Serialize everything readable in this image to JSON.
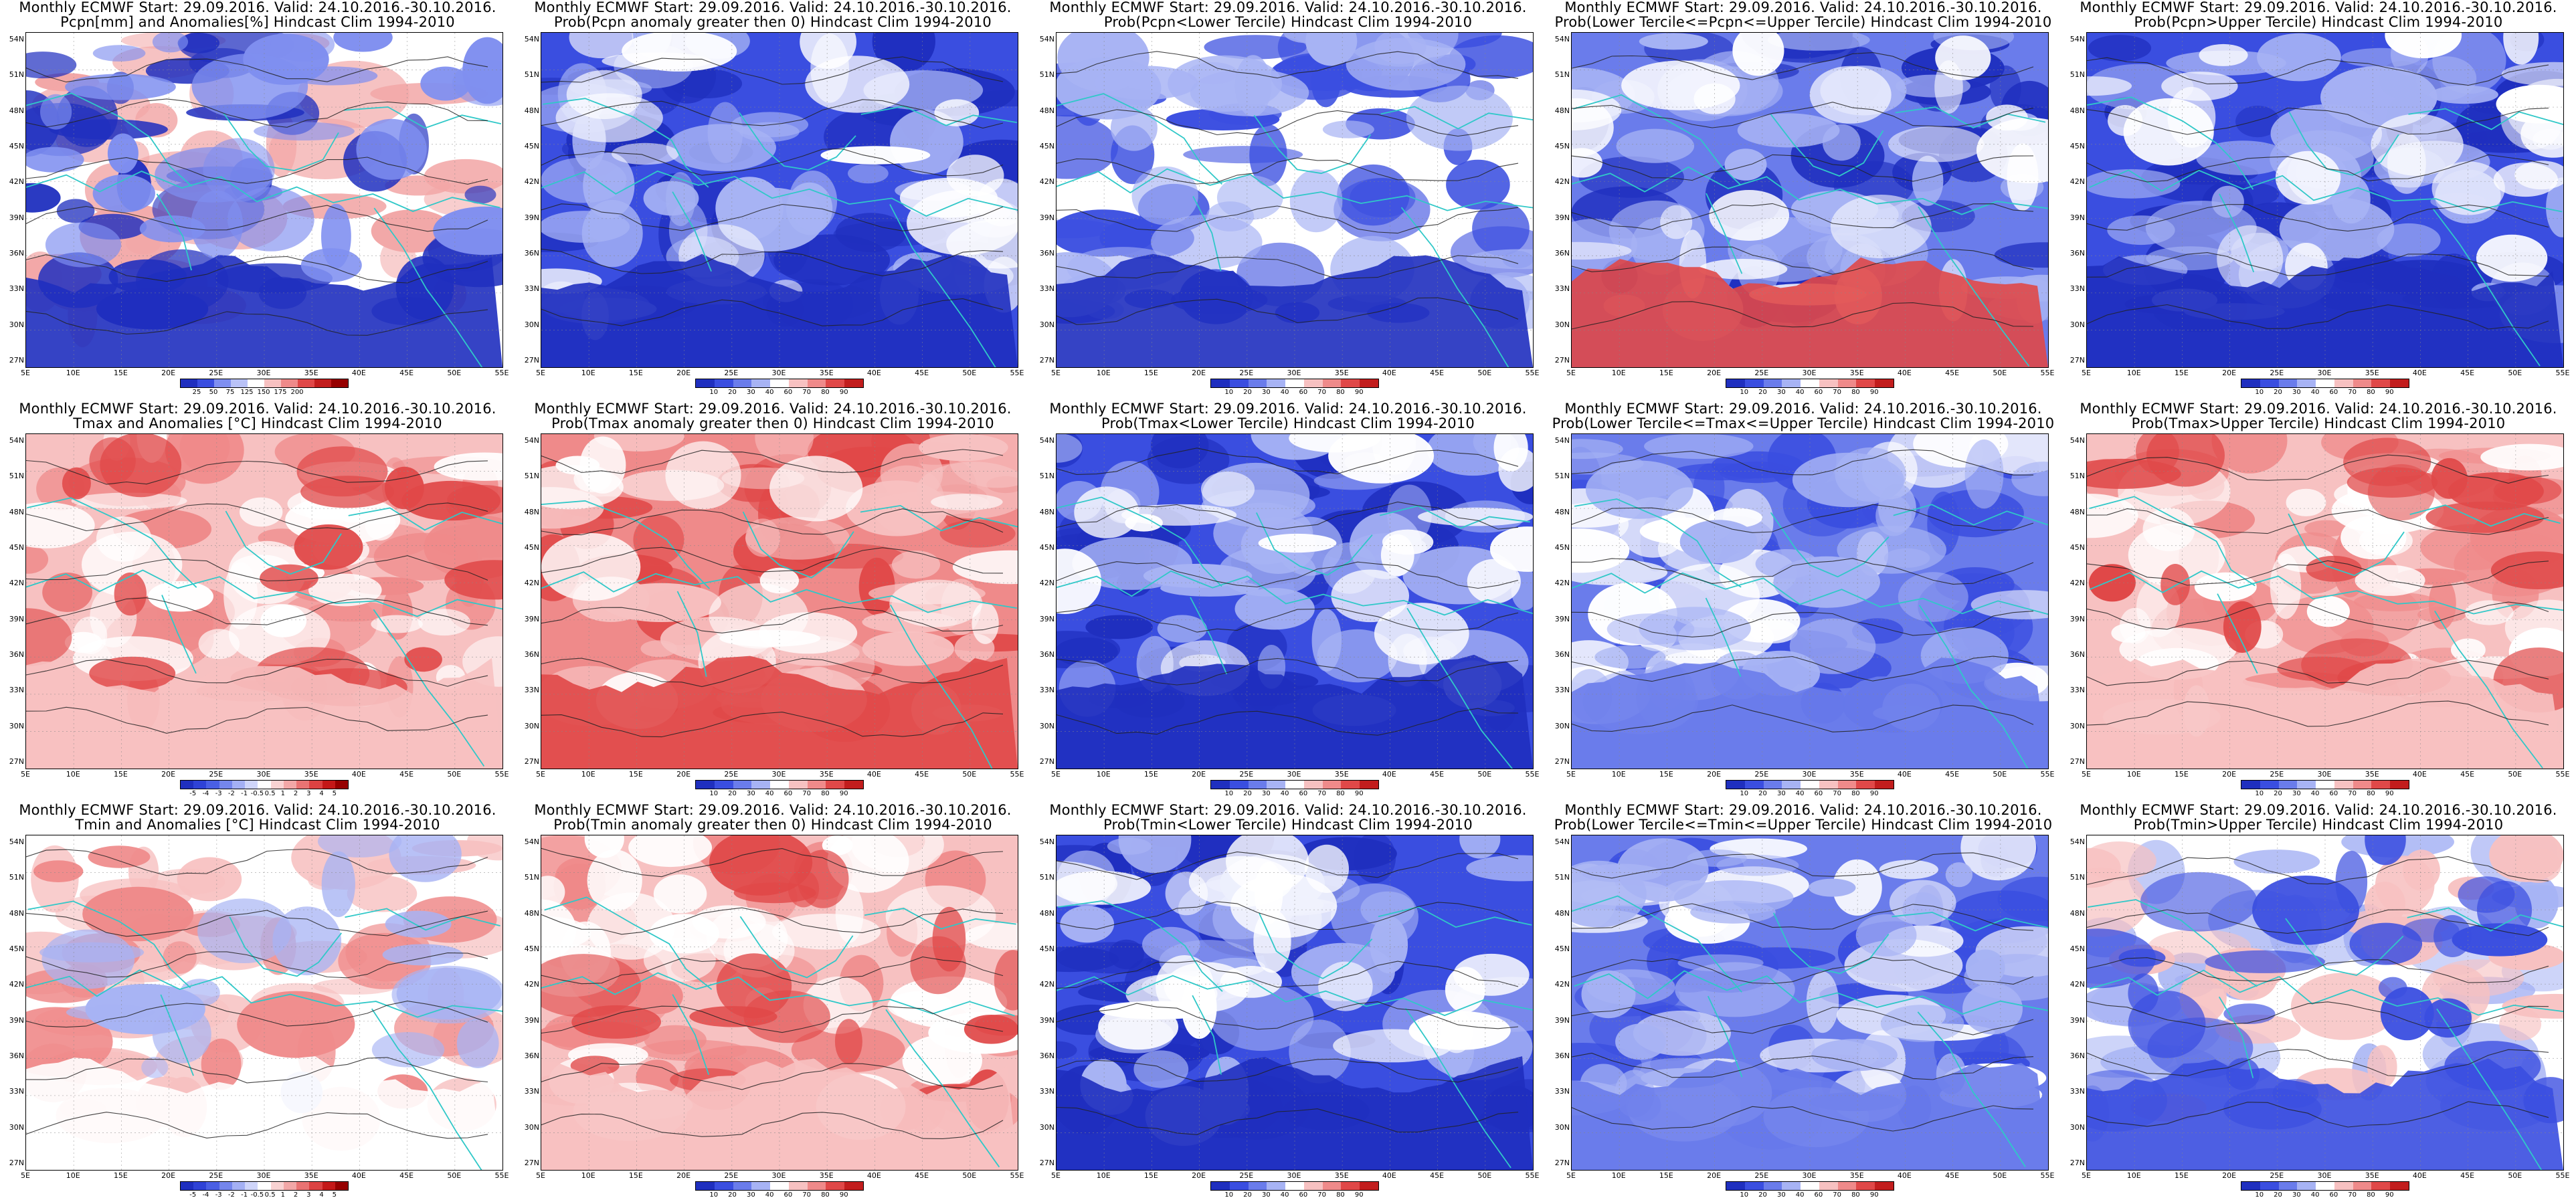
{
  "panels": [
    {
      "id": "r1c1",
      "line1": "Monthly ECMWF Start: 29.09.2016. Valid: 24.10.2016.-30.10.2016.",
      "line2": "Pcpn[mm] and Anomalies[%] Hindcast Clim 1994-2010",
      "colorbar": {
        "labels": [
          "25",
          "50",
          "75",
          "125",
          "150",
          "175",
          "200"
        ],
        "colors": [
          "#1f2fbf",
          "#3a4ee0",
          "#7f8ff0",
          "#b9c2f7",
          "#ffffff",
          "#f7c1c1",
          "#ef8a8a",
          "#e04848",
          "#c21d1d",
          "#960000"
        ],
        "style": "anom"
      }
    },
    {
      "id": "r1c2",
      "line1": "Monthly ECMWF Start: 29.09.2016. Valid: 24.10.2016.-30.10.2016.",
      "line2": "Prob(Pcpn anomaly greater then 0) Hindcast Clim 1994-2010",
      "colorbar": {
        "labels": [
          "10",
          "20",
          "30",
          "40",
          "60",
          "70",
          "80",
          "90"
        ],
        "colors": [
          "#1f2fbf",
          "#3a4ee0",
          "#6a7ceb",
          "#a7b3f4",
          "#ffffff",
          "#f7c1c1",
          "#ef8a8a",
          "#e04848",
          "#c21d1d"
        ],
        "style": "lowprob"
      }
    },
    {
      "id": "r1c3",
      "line1": "Monthly ECMWF Start: 29.09.2016. Valid: 24.10.2016.-30.10.2016.",
      "line2": "Prob(Pcpn<Lower Tercile) Hindcast Clim 1994-2010",
      "colorbar": {
        "labels": [
          "10",
          "20",
          "30",
          "40",
          "60",
          "70",
          "80",
          "90"
        ],
        "colors": [
          "#1f2fbf",
          "#3a4ee0",
          "#6a7ceb",
          "#a7b3f4",
          "#ffffff",
          "#f7c1c1",
          "#ef8a8a",
          "#e04848",
          "#c21d1d"
        ],
        "style": "mixed"
      }
    },
    {
      "id": "r1c4",
      "line1": "Monthly ECMWF Start: 29.09.2016. Valid: 24.10.2016.-30.10.2016.",
      "line2": "Prob(Lower Tercile<=Pcpn<=Upper Tercile) Hindcast Clim 1994-2010",
      "colorbar": {
        "labels": [
          "10",
          "20",
          "30",
          "40",
          "60",
          "70",
          "80",
          "90"
        ],
        "colors": [
          "#1f2fbf",
          "#3a4ee0",
          "#6a7ceb",
          "#a7b3f4",
          "#ffffff",
          "#f7c1c1",
          "#ef8a8a",
          "#e04848",
          "#c21d1d"
        ],
        "style": "southred"
      }
    },
    {
      "id": "r1c5",
      "line1": "Monthly ECMWF Start: 29.09.2016. Valid: 24.10.2016.-30.10.2016.",
      "line2": "Prob(Pcpn>Upper Tercile) Hindcast Clim 1994-2010",
      "colorbar": {
        "labels": [
          "10",
          "20",
          "30",
          "40",
          "60",
          "70",
          "80",
          "90"
        ],
        "colors": [
          "#1f2fbf",
          "#3a4ee0",
          "#6a7ceb",
          "#a7b3f4",
          "#ffffff",
          "#f7c1c1",
          "#ef8a8a",
          "#e04848",
          "#c21d1d"
        ],
        "style": "lowprob"
      }
    },
    {
      "id": "r2c1",
      "line1": "Monthly ECMWF Start: 29.09.2016. Valid: 24.10.2016.-30.10.2016.",
      "line2": "Tmax and Anomalies [°C] Hindcast Clim 1994-2010",
      "colorbar": {
        "labels": [
          "-5",
          "-4",
          "-3",
          "-2",
          "-1",
          "-0.5",
          "0.5",
          "1",
          "2",
          "3",
          "4",
          "5"
        ],
        "colors": [
          "#1f2fbf",
          "#2f42d6",
          "#4a5fe4",
          "#7586ec",
          "#a4b0f4",
          "#cfd5fa",
          "#ffffff",
          "#f9d2d2",
          "#f2a7a7",
          "#e97373",
          "#dc4242",
          "#c41818",
          "#960000"
        ],
        "style": "warm"
      }
    },
    {
      "id": "r2c2",
      "line1": "Monthly ECMWF Start: 29.09.2016. Valid: 24.10.2016.-30.10.2016.",
      "line2": "Prob(Tmax anomaly greater then 0) Hindcast Clim 1994-2010",
      "colorbar": {
        "labels": [
          "10",
          "20",
          "30",
          "40",
          "60",
          "70",
          "80",
          "90"
        ],
        "colors": [
          "#1f2fbf",
          "#3a4ee0",
          "#6a7ceb",
          "#a7b3f4",
          "#ffffff",
          "#f7c1c1",
          "#ef8a8a",
          "#e04848",
          "#c21d1d"
        ],
        "style": "hot"
      }
    },
    {
      "id": "r2c3",
      "line1": "Monthly ECMWF Start: 29.09.2016. Valid: 24.10.2016.-30.10.2016.",
      "line2": "Prob(Tmax<Lower Tercile) Hindcast Clim 1994-2010",
      "colorbar": {
        "labels": [
          "10",
          "20",
          "30",
          "40",
          "60",
          "70",
          "80",
          "90"
        ],
        "colors": [
          "#1f2fbf",
          "#3a4ee0",
          "#6a7ceb",
          "#a7b3f4",
          "#ffffff",
          "#f7c1c1",
          "#ef8a8a",
          "#e04848",
          "#c21d1d"
        ],
        "style": "lowprob"
      }
    },
    {
      "id": "r2c4",
      "line1": "Monthly ECMWF Start: 29.09.2016. Valid: 24.10.2016.-30.10.2016.",
      "line2": "Prob(Lower Tercile<=Tmax<=Upper Tercile) Hindcast Clim 1994-2010",
      "colorbar": {
        "labels": [
          "10",
          "20",
          "30",
          "40",
          "60",
          "70",
          "80",
          "90"
        ],
        "colors": [
          "#1f2fbf",
          "#3a4ee0",
          "#6a7ceb",
          "#a7b3f4",
          "#ffffff",
          "#f7c1c1",
          "#ef8a8a",
          "#e04848",
          "#c21d1d"
        ],
        "style": "midprob"
      }
    },
    {
      "id": "r2c5",
      "line1": "Monthly ECMWF Start: 29.09.2016. Valid: 24.10.2016.-30.10.2016.",
      "line2": "Prob(Tmax>Upper Tercile) Hindcast Clim 1994-2010",
      "colorbar": {
        "labels": [
          "10",
          "20",
          "30",
          "40",
          "60",
          "70",
          "80",
          "90"
        ],
        "colors": [
          "#1f2fbf",
          "#3a4ee0",
          "#6a7ceb",
          "#a7b3f4",
          "#ffffff",
          "#f7c1c1",
          "#ef8a8a",
          "#e04848",
          "#c21d1d"
        ],
        "style": "warm"
      }
    },
    {
      "id": "r3c1",
      "line1": "Monthly ECMWF Start: 29.09.2016. Valid: 24.10.2016.-30.10.2016.",
      "line2": "Tmin and Anomalies [°C] Hindcast Clim 1994-2010",
      "colorbar": {
        "labels": [
          "-5",
          "-4",
          "-3",
          "-2",
          "-1",
          "-0.5",
          "0.5",
          "1",
          "2",
          "3",
          "4",
          "5"
        ],
        "colors": [
          "#1f2fbf",
          "#2f42d6",
          "#4a5fe4",
          "#7586ec",
          "#a4b0f4",
          "#cfd5fa",
          "#ffffff",
          "#f9d2d2",
          "#f2a7a7",
          "#e97373",
          "#dc4242",
          "#c41818",
          "#960000"
        ],
        "style": "paleWarm"
      }
    },
    {
      "id": "r3c2",
      "line1": "Monthly ECMWF Start: 29.09.2016. Valid: 24.10.2016.-30.10.2016.",
      "line2": "Prob(Tmin anomaly greater then 0) Hindcast Clim 1994-2010",
      "colorbar": {
        "labels": [
          "10",
          "20",
          "30",
          "40",
          "60",
          "70",
          "80",
          "90"
        ],
        "colors": [
          "#1f2fbf",
          "#3a4ee0",
          "#6a7ceb",
          "#a7b3f4",
          "#ffffff",
          "#f7c1c1",
          "#ef8a8a",
          "#e04848",
          "#c21d1d"
        ],
        "style": "warm"
      }
    },
    {
      "id": "r3c3",
      "line1": "Monthly ECMWF Start: 29.09.2016. Valid: 24.10.2016.-30.10.2016.",
      "line2": "Prob(Tmin<Lower Tercile) Hindcast Clim 1994-2010",
      "colorbar": {
        "labels": [
          "10",
          "20",
          "30",
          "40",
          "60",
          "70",
          "80",
          "90"
        ],
        "colors": [
          "#1f2fbf",
          "#3a4ee0",
          "#6a7ceb",
          "#a7b3f4",
          "#ffffff",
          "#f7c1c1",
          "#ef8a8a",
          "#e04848",
          "#c21d1d"
        ],
        "style": "lowprob"
      }
    },
    {
      "id": "r3c4",
      "line1": "Monthly ECMWF Start: 29.09.2016. Valid: 24.10.2016.-30.10.2016.",
      "line2": "Prob(Lower Tercile<=Tmin<=Upper Tercile) Hindcast Clim 1994-2010",
      "colorbar": {
        "labels": [
          "10",
          "20",
          "30",
          "40",
          "60",
          "70",
          "80",
          "90"
        ],
        "colors": [
          "#1f2fbf",
          "#3a4ee0",
          "#6a7ceb",
          "#a7b3f4",
          "#ffffff",
          "#f7c1c1",
          "#ef8a8a",
          "#e04848",
          "#c21d1d"
        ],
        "style": "midprob"
      }
    },
    {
      "id": "r3c5",
      "line1": "Monthly ECMWF Start: 29.09.2016. Valid: 24.10.2016.-30.10.2016.",
      "line2": "Prob(Tmin>Upper Tercile) Hindcast Clim 1994-2010",
      "colorbar": {
        "labels": [
          "10",
          "20",
          "30",
          "40",
          "60",
          "70",
          "80",
          "90"
        ],
        "colors": [
          "#1f2fbf",
          "#3a4ee0",
          "#6a7ceb",
          "#a7b3f4",
          "#ffffff",
          "#f7c1c1",
          "#ef8a8a",
          "#e04848",
          "#c21d1d"
        ],
        "style": "paleBlue"
      }
    }
  ],
  "axes": {
    "lat_labels": [
      "54N",
      "51N",
      "48N",
      "45N",
      "42N",
      "39N",
      "36N",
      "33N",
      "30N",
      "27N"
    ],
    "lon_labels": [
      "5E",
      "10E",
      "15E",
      "20E",
      "25E",
      "30E",
      "35E",
      "40E",
      "45E",
      "50E",
      "55E"
    ]
  },
  "palette": {
    "coast": "#30c8c8",
    "contour": "#222222",
    "white": "#ffffff"
  }
}
